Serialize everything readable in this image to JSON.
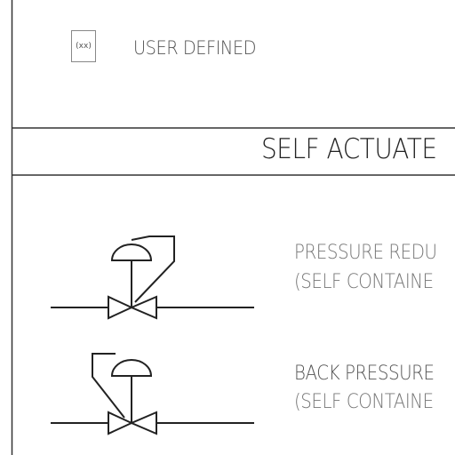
{
  "user_defined": {
    "box_text": "(xx)",
    "label": "USER DEFINED"
  },
  "section": {
    "title": "SELF ACTUATE"
  },
  "symbols": [
    {
      "line1": "PRESSURE REDU",
      "line2": "(SELF CONTAINE"
    },
    {
      "line1": "BACK PRESSURE",
      "line2": "(SELF CONTAINE"
    }
  ]
}
